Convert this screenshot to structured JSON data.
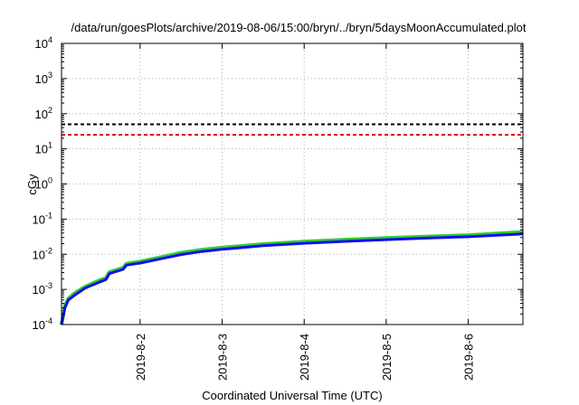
{
  "chart_data": {
    "type": "line",
    "title": "/data/run/goesPlots/archive/2019-08-06/15:00/bryn/../bryn/5daysMoonAccumulated.plot",
    "xlabel": "Coordinated Universal Time (UTC)",
    "ylabel": "cGy",
    "yscale": "log",
    "ylim": [
      0.0001,
      10000
    ],
    "y_ticks": [
      {
        "value": 0.0001,
        "base": "10",
        "exp": "-4"
      },
      {
        "value": 0.001,
        "base": "10",
        "exp": "-3"
      },
      {
        "value": 0.01,
        "base": "10",
        "exp": "-2"
      },
      {
        "value": 0.1,
        "base": "10",
        "exp": "-1"
      },
      {
        "value": 1,
        "base": "10",
        "exp": "0"
      },
      {
        "value": 10,
        "base": "10",
        "exp": "1"
      },
      {
        "value": 100,
        "base": "10",
        "exp": "2"
      },
      {
        "value": 1000,
        "base": "10",
        "exp": "3"
      },
      {
        "value": 10000,
        "base": "10",
        "exp": "4"
      }
    ],
    "xlim": [
      "2019-08-01T01:00",
      "2019-08-06T16:00"
    ],
    "x_ticks": [
      {
        "value": "2019-08-02T00:00",
        "label": "2019-8-2"
      },
      {
        "value": "2019-08-03T00:00",
        "label": "2019-8-3"
      },
      {
        "value": "2019-08-04T00:00",
        "label": "2019-8-4"
      },
      {
        "value": "2019-08-05T00:00",
        "label": "2019-8-5"
      },
      {
        "value": "2019-08-06T00:00",
        "label": "2019-8-6"
      }
    ],
    "grid": true,
    "reference_lines": [
      {
        "y": 50,
        "color": "#000000",
        "style": "dashed"
      },
      {
        "y": 25,
        "color": "#e00000",
        "style": "dashed"
      }
    ],
    "series": [
      {
        "color": "#33cc33",
        "x": [
          "2019-08-01T01:00",
          "2019-08-01T02:00",
          "2019-08-01T03:00",
          "2019-08-01T05:00",
          "2019-08-01T08:00",
          "2019-08-01T12:00",
          "2019-08-01T14:00",
          "2019-08-01T15:00",
          "2019-08-01T19:00",
          "2019-08-01T20:00",
          "2019-08-02T00:00",
          "2019-08-02T06:00",
          "2019-08-02T12:00",
          "2019-08-02T18:00",
          "2019-08-03T00:00",
          "2019-08-03T12:00",
          "2019-08-04T00:00",
          "2019-08-04T12:00",
          "2019-08-05T00:00",
          "2019-08-05T12:00",
          "2019-08-06T00:00",
          "2019-08-06T16:00"
        ],
        "y": [
          0.0001,
          0.00035,
          0.00055,
          0.0008,
          0.0012,
          0.0018,
          0.0021,
          0.0031,
          0.0041,
          0.0054,
          0.0062,
          0.0082,
          0.011,
          0.0135,
          0.0155,
          0.0195,
          0.023,
          0.026,
          0.029,
          0.032,
          0.035,
          0.043
        ]
      },
      {
        "color": "#1010ee",
        "x": [
          "2019-08-01T01:00",
          "2019-08-01T02:00",
          "2019-08-01T03:00",
          "2019-08-01T05:00",
          "2019-08-01T08:00",
          "2019-08-01T12:00",
          "2019-08-01T14:00",
          "2019-08-01T15:00",
          "2019-08-01T19:00",
          "2019-08-01T20:00",
          "2019-08-02T00:00",
          "2019-08-02T06:00",
          "2019-08-02T12:00",
          "2019-08-02T18:00",
          "2019-08-03T00:00",
          "2019-08-03T12:00",
          "2019-08-04T00:00",
          "2019-08-04T12:00",
          "2019-08-05T00:00",
          "2019-08-05T12:00",
          "2019-08-06T00:00",
          "2019-08-06T16:00"
        ],
        "y": [
          0.0001,
          0.0003,
          0.0005,
          0.0007,
          0.0011,
          0.0016,
          0.0019,
          0.0028,
          0.0037,
          0.0049,
          0.0056,
          0.0074,
          0.0098,
          0.012,
          0.0138,
          0.0175,
          0.0205,
          0.0233,
          0.026,
          0.0288,
          0.0315,
          0.038
        ]
      }
    ]
  }
}
